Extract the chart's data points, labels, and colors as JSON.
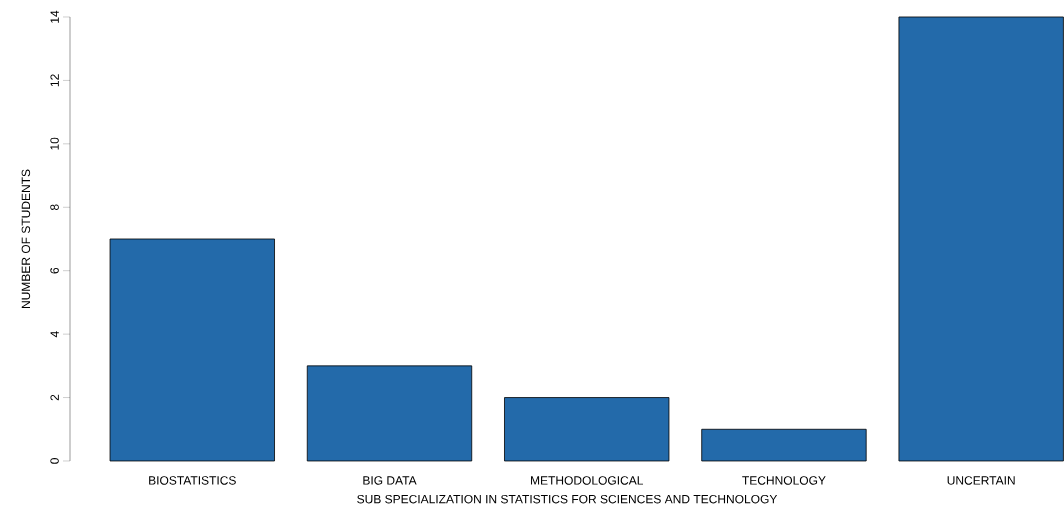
{
  "chart_data": {
    "type": "bar",
    "xlabel": "SUB SPECIALIZATION IN STATISTICS FOR SCIENCES AND TECHNOLOGY",
    "ylabel": "NUMBER OF STUDENTS",
    "categories": [
      "BIOSTATISTICS",
      "BIG DATA",
      "METHODOLOGICAL",
      "TECHNOLOGY",
      "UNCERTAIN"
    ],
    "values": [
      7,
      3,
      2,
      1,
      14
    ],
    "color": "#236aaa",
    "ylim": [
      0,
      14
    ],
    "yticks": [
      0,
      2,
      4,
      6,
      8,
      10,
      12,
      14
    ]
  }
}
